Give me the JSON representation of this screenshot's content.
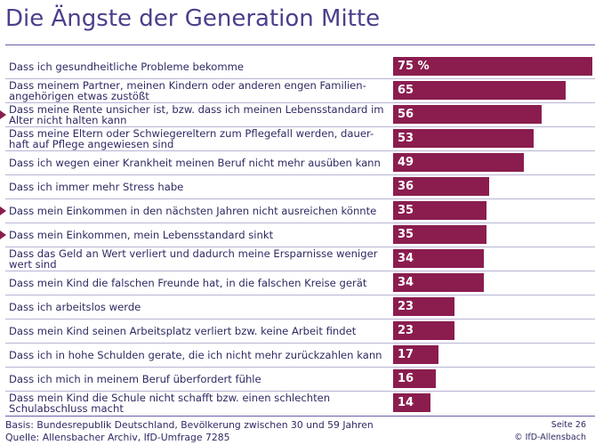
{
  "title": "Die Ängste der Generation Mitte",
  "chart_data": {
    "type": "bar",
    "orientation": "horizontal",
    "title": "Die Ängste der Generation Mitte",
    "unit": "%",
    "xlim": [
      0,
      100
    ],
    "grid": false,
    "bar_color": "#8b1d4e",
    "categories": [
      "Dass ich gesundheitliche Probleme bekomme",
      "Dass meinem Partner, meinen Kindern oder anderen engen Familien-angehörigen etwas zustößt",
      "Dass meine Rente unsicher ist, bzw. dass ich meinen Lebensstandard im Alter nicht halten kann",
      "Dass meine Eltern oder Schwiegereltern zum Pflegefall werden, dauer-haft auf Pflege angewiesen sind",
      "Dass ich wegen einer Krankheit meinen Beruf nicht mehr ausüben kann",
      "Dass ich immer mehr Stress habe",
      "Dass mein Einkommen in den nächsten Jahren nicht ausreichen könnte",
      "Dass mein Einkommen, mein Lebensstandard sinkt",
      "Dass das Geld an Wert verliert und dadurch meine Ersparnisse weniger wert sind",
      "Dass mein Kind die falschen Freunde hat, in die falschen Kreise gerät",
      "Dass ich arbeitslos werde",
      "Dass mein Kind seinen Arbeitsplatz verliert bzw. keine Arbeit findet",
      "Dass ich in hohe Schulden gerate, die ich nicht mehr zurückzahlen kann",
      "Dass ich mich in meinem Beruf überfordert fühle",
      "Dass mein Kind die Schule nicht schafft bzw. einen schlechten Schulabschluss macht"
    ],
    "values": [
      75,
      65,
      56,
      53,
      49,
      36,
      35,
      35,
      34,
      34,
      23,
      23,
      17,
      16,
      14
    ],
    "value_labels": [
      "75 %",
      "65",
      "56",
      "53",
      "49",
      "36",
      "35",
      "35",
      "34",
      "34",
      "23",
      "23",
      "17",
      "16",
      "14"
    ],
    "highlighted": [
      false,
      false,
      true,
      false,
      false,
      false,
      true,
      true,
      false,
      false,
      false,
      false,
      false,
      false,
      false
    ]
  },
  "footer": {
    "basis": "Basis: Bundesrepublik Deutschland, Bevölkerung zwischen 30 und 59 Jahren",
    "source": "Quelle: Allensbacher Archiv, IfD-Umfrage 7285",
    "page": "Seite 26",
    "copyright": "© IfD-Allensbach"
  }
}
